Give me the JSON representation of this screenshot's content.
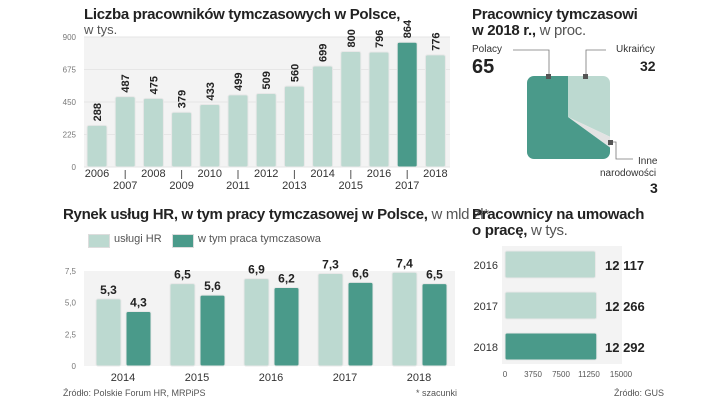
{
  "colors": {
    "light": "#bcd9d0",
    "dark": "#4a9a8a",
    "other": "#e3e3e3",
    "grid": "#f3f3f3"
  },
  "chart_data": [
    {
      "type": "bar",
      "title": "Liczba pracowników tymczasowych w Polsce,",
      "subtitle": "w tys.",
      "categories": [
        "2006",
        "2007",
        "2008",
        "2009",
        "2010",
        "2011",
        "2012",
        "2013",
        "2014",
        "2015",
        "2016",
        "2017",
        "2018"
      ],
      "values": [
        288,
        487,
        475,
        379,
        433,
        499,
        509,
        560,
        699,
        800,
        796,
        864,
        776
      ],
      "highlight": "2017",
      "ylim": [
        0,
        900
      ],
      "yticks": [
        "0",
        "225",
        "450",
        "675",
        "900"
      ],
      "ytick_values": [
        0,
        225,
        450,
        675,
        900
      ]
    },
    {
      "type": "bar",
      "title": "Rynek usług HR, w tym  pracy tymczasowej w Polsce,",
      "subtitle": "w mld zł*",
      "categories": [
        "2014",
        "2015",
        "2016",
        "2017",
        "2018"
      ],
      "series": [
        {
          "name": "usługi HR",
          "values": [
            5.3,
            6.5,
            6.9,
            7.3,
            7.4
          ],
          "labels": [
            "5,3",
            "6,5",
            "6,9",
            "7,3",
            "7,4"
          ]
        },
        {
          "name": "w tym praca tymczasowa",
          "values": [
            4.3,
            5.6,
            6.2,
            6.6,
            6.5
          ],
          "labels": [
            "4,3",
            "5,6",
            "6,2",
            "6,6",
            "6,5"
          ]
        }
      ],
      "ylim": [
        0,
        7.5
      ],
      "yticks": [
        "0",
        "2,5",
        "5,0",
        "7,5"
      ],
      "ytick_values": [
        0,
        2.5,
        5,
        7.5
      ],
      "source": "Źródło: Polskie Forum HR, MRPiPS",
      "note": "* szacunki"
    },
    {
      "type": "pie",
      "title": "Pracownicy tymczasowi",
      "title2": "w 2018 r.,",
      "subtitle": "w proc.",
      "slices": [
        {
          "label": "Polacy",
          "value": 65
        },
        {
          "label": "Ukraińcy",
          "value": 32
        },
        {
          "label": "Inne narodowości",
          "label1": "Inne",
          "label2": "narodowości",
          "value": 3
        }
      ]
    },
    {
      "type": "bar",
      "orientation": "horizontal",
      "title": "Pracownicy na umowach",
      "title2": "o pracę,",
      "subtitle": "w tys.",
      "categories": [
        "2016",
        "2017",
        "2018"
      ],
      "values": [
        12117,
        12266,
        12292
      ],
      "labels": [
        "12 117",
        "12 266",
        "12 292"
      ],
      "highlight": "2018",
      "xlim": [
        0,
        15000
      ],
      "xticks": [
        "0",
        "3750",
        "7500",
        "11250",
        "15000"
      ],
      "xtick_values": [
        0,
        3750,
        7500,
        11250,
        15000
      ],
      "source": "Źródło: GUS"
    }
  ]
}
